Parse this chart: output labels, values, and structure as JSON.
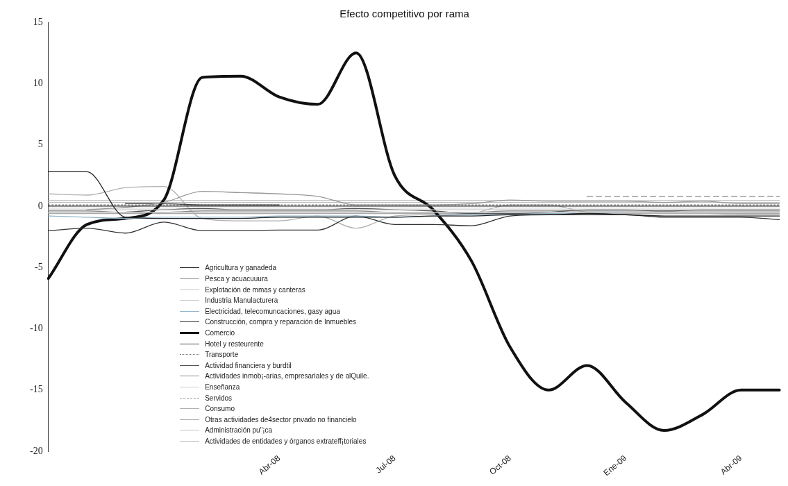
{
  "chart_data": {
    "type": "line",
    "title": "Efecto competitivo por rama",
    "categories": [
      null,
      null,
      null,
      null,
      null,
      null,
      "Abr-08",
      null,
      null,
      "Jul-08",
      null,
      null,
      "Oct-08",
      null,
      null,
      "Ene-09",
      null,
      null,
      "Abr-09",
      null
    ],
    "ylim": [
      -20,
      15
    ],
    "yticks": [
      -20,
      -15,
      -10,
      -5,
      0,
      5,
      10,
      15
    ],
    "grid": false,
    "legend": "bottom left",
    "marker": "none",
    "ref_lines": [
      {
        "axis": "y",
        "value": 0,
        "color": "#333333"
      }
    ],
    "series": [
      {
        "name": "Agricultura y ganadeda",
        "color": "#222222",
        "values": [
          2.8,
          2.8,
          -0.9,
          -1.0,
          -1.0,
          -1.0,
          -0.9,
          -0.9,
          -0.9,
          -0.9,
          -0.8,
          -0.8,
          -0.7,
          -0.7,
          -0.6,
          -0.7,
          -0.8,
          -0.8,
          -0.8,
          -0.8
        ]
      },
      {
        "name": "Pesca y acuacuuura",
        "color": "#999999",
        "values": [
          null,
          -0.3,
          -0.1,
          0.3,
          1.2,
          1.1,
          1.0,
          0.8,
          0.1,
          0.1,
          0.1,
          0.2,
          0.5,
          0.4,
          0.4,
          0.4,
          0.3,
          0.4,
          0.2,
          0.2
        ]
      },
      {
        "name": "Explotación de mmas y canteras",
        "color": "#c4c4c4",
        "values": [
          -0.3,
          -0.3,
          -0.3,
          -0.3,
          -0.3,
          -0.3,
          -0.3,
          -0.3,
          -0.3,
          -0.3,
          -0.3,
          -0.3,
          -0.3,
          -0.3,
          -0.3,
          -0.3,
          -0.3,
          -0.3,
          -0.3,
          -0.3
        ]
      },
      {
        "name": "Industria Manulacturera",
        "color": "#c8c8c8",
        "values": [
          -0.5,
          -0.5,
          -0.5,
          -0.5,
          -0.5,
          -0.5,
          -0.5,
          -0.5,
          -0.5,
          -0.5,
          -0.5,
          -0.5,
          -0.5,
          -0.5,
          -0.5,
          -0.5,
          -0.5,
          -0.5,
          -0.5,
          -0.5
        ]
      },
      {
        "name": "Electricidad, telecomuncaciones, gasy agua",
        "color": "#8fb4c8",
        "values": [
          -0.8,
          -0.9,
          -1.0,
          -0.9,
          -0.9,
          -0.9,
          -0.8,
          -0.8,
          -0.8,
          -0.9,
          -0.8,
          -0.7,
          -0.7,
          -0.6,
          -0.6,
          -0.5,
          -0.5,
          -0.5,
          -0.5,
          -0.5
        ]
      },
      {
        "name": "Construcción, compra y reparación de Inmuebles",
        "color": "#333333",
        "values": [
          -2.0,
          -1.8,
          -2.2,
          -1.3,
          -2.0,
          -2.0,
          -1.95,
          -1.95,
          -0.8,
          -1.5,
          -1.5,
          -1.6,
          -0.8,
          -0.7,
          -0.7,
          -0.7,
          -0.9,
          -0.9,
          -0.9,
          -1.1
        ]
      },
      {
        "name": "Comercio",
        "color": "#111111",
        "values": [
          -5.9,
          -1.5,
          -1.0,
          0.5,
          10.5,
          10.6,
          8.9,
          8.3,
          12.5,
          2.5,
          -0.3,
          -4.5,
          -11.5,
          -15,
          -13,
          -16,
          -18.3,
          -17,
          -15,
          -15
        ]
      },
      {
        "name": "Hotel y resteurente",
        "color": "#444444",
        "values": [
          null,
          null,
          0.2,
          0.2,
          0.1,
          0.1,
          0.1,
          null,
          null,
          null,
          null,
          null,
          null,
          null,
          null,
          null,
          null,
          null,
          null,
          null
        ]
      },
      {
        "name": "Transporte",
        "color": "#777777",
        "line_style": "dotted",
        "values": [
          0.1,
          0.1,
          0.1,
          0.1,
          0.1,
          0.1,
          0.1,
          0.1,
          0.1,
          0.1,
          0.1,
          0.1,
          0.1,
          0.1,
          0.1,
          0.1,
          0.1,
          0.1,
          0.1,
          0.1
        ]
      },
      {
        "name": "Actividad financiera y burdtil",
        "color": "#555555",
        "values": [
          null,
          null,
          -0.5,
          -0.3,
          -0.2,
          -0.3,
          -0.3,
          -0.3,
          -0.2,
          -0.3,
          -0.4,
          -0.6,
          -0.6,
          -0.5,
          -0.3,
          -0.3,
          -0.4,
          -0.3,
          -0.3,
          -0.3
        ]
      },
      {
        "name": "Actividades inmob¡-arias, empresariales y de alQuile.",
        "color": "#888888",
        "values": [
          -0.4,
          -0.4,
          -0.5,
          -0.5,
          -0.4,
          -0.4,
          -0.4,
          -0.4,
          -0.4,
          -0.5,
          -0.5,
          -0.5,
          -0.4,
          -0.4,
          -0.4,
          -0.4,
          -0.4,
          -0.4,
          -0.4,
          -0.4
        ]
      },
      {
        "name": "Enseñanza",
        "color": "#cccccc",
        "values": [
          -0.15,
          -0.15,
          -0.15,
          -0.15,
          -0.15,
          -0.15,
          -0.15,
          -0.15,
          -0.15,
          -0.15,
          -0.15,
          -0.15,
          -0.15,
          -0.15,
          -0.15,
          -0.15,
          -0.15,
          -0.15,
          -0.15,
          -0.15
        ]
      },
      {
        "name": "Servidos",
        "color": "#999999",
        "line_style": "dashed",
        "values": [
          null,
          null,
          null,
          null,
          null,
          null,
          null,
          null,
          null,
          null,
          null,
          null,
          null,
          null,
          0.8,
          0.8,
          0.8,
          0.8,
          0.8,
          0.8
        ]
      },
      {
        "name": "Consumo",
        "color": "#b0b0b0",
        "values": [
          1.0,
          0.9,
          1.5,
          1.6,
          -1.0,
          -1.2,
          -1.2,
          -0.8,
          -1.8,
          -0.8,
          -0.7,
          -0.6,
          0.1,
          0.1,
          -0.5,
          -0.6,
          -0.6,
          -0.6,
          -0.7,
          -0.7
        ]
      },
      {
        "name": "Otras actividades de4sector pnvado no financielo",
        "color": "#aaaaaa",
        "values": [
          -0.6,
          -0.6,
          -0.6,
          -0.6,
          -0.6,
          -0.6,
          -0.6,
          -0.6,
          -0.6,
          -0.6,
          -0.6,
          -0.6,
          -0.6,
          -0.6,
          -0.6,
          -0.6,
          -0.6,
          -0.6,
          -0.6,
          -0.6
        ]
      },
      {
        "name": "Administración pu\"¡ca",
        "color": "#c0c0c0",
        "values": [
          0.3,
          0.3,
          0.3,
          0.3,
          0.3,
          0.3,
          0.3,
          0.3,
          0.3,
          0.3,
          0.3,
          0.3,
          0.3,
          0.3,
          0.3,
          0.3,
          0.3,
          0.3,
          0.3,
          0.3
        ]
      },
      {
        "name": "Actividades de entidades y órganos extrateff¡toriales",
        "color": "#bcbcbc",
        "values": [
          0.45,
          0.45,
          0.45,
          0.45,
          0.45,
          0.45,
          0.45,
          0.45,
          0.45,
          0.45,
          0.45,
          0.45,
          0.45,
          0.45,
          0.45,
          0.45,
          0.45,
          0.45,
          0.45,
          0.45
        ]
      }
    ]
  }
}
